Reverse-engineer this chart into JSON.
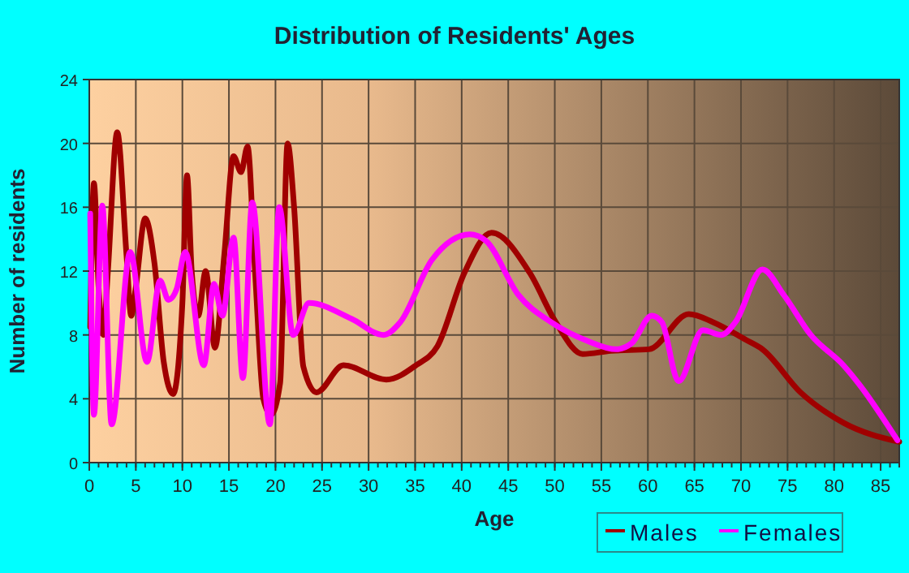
{
  "chart_data": {
    "type": "line",
    "title": "Distribution of Residents' Ages",
    "xlabel": "Age",
    "ylabel": "Number of residents",
    "xlim": [
      0,
      87
    ],
    "ylim": [
      0,
      24
    ],
    "xticks": [
      0,
      5,
      10,
      15,
      20,
      25,
      30,
      35,
      40,
      45,
      50,
      55,
      60,
      65,
      70,
      75,
      80,
      85
    ],
    "yticks": [
      0,
      4,
      8,
      12,
      16,
      20,
      24
    ],
    "grid": true,
    "legend": "bottom",
    "marker": "none",
    "line_style": "solid",
    "series": [
      {
        "name": "Males",
        "color": "#a00000",
        "x": [
          0.1,
          0.5,
          1,
          1.5,
          2,
          3,
          4,
          4.5,
          5,
          6,
          7,
          8,
          9,
          10,
          10.5,
          11,
          11.7,
          12.5,
          13.5,
          14.5,
          15.5,
          16.3,
          17,
          17.8,
          18.7,
          19.5,
          20.5,
          21.3,
          22,
          23,
          24.4,
          27.3,
          31.9,
          35.1,
          37.4,
          40.3,
          43.2,
          47.3,
          50.1,
          53,
          56,
          60.1,
          64.4,
          67,
          70.5,
          72.3,
          76.4,
          81,
          87
        ],
        "values": [
          8.5,
          17.5,
          11,
          8,
          12,
          20.7,
          13,
          9.2,
          11,
          15.3,
          12.5,
          6.3,
          4.3,
          10,
          18,
          12,
          9.2,
          12,
          7.2,
          13,
          19.2,
          18.2,
          19.8,
          12,
          4,
          3,
          5,
          20,
          16,
          6,
          4.4,
          6.1,
          5.2,
          6.1,
          7.3,
          11.9,
          14.4,
          11.9,
          8.8,
          6.8,
          7,
          7.1,
          9.3,
          8.8,
          7.7,
          7.1,
          4.4,
          2.5,
          1.3
        ]
      },
      {
        "name": "Females",
        "color": "#ff00ff",
        "x": [
          0.1,
          0.5,
          1.4,
          2.4,
          4.4,
          6.2,
          7.6,
          8.5,
          9.4,
          10.3,
          12.3,
          13.4,
          14.3,
          15.5,
          16.5,
          17.5,
          19.4,
          20.4,
          21.9,
          23.6,
          28.2,
          31.6,
          33.4,
          36.8,
          40.9,
          42.6,
          46.1,
          49.6,
          53.6,
          56.6,
          58.3,
          60.4,
          61.5,
          63.3,
          65.9,
          67.9,
          69.4,
          72.3,
          74.6,
          77.5,
          81,
          82.7,
          86.8
        ],
        "values": [
          15.6,
          3,
          16.1,
          2.4,
          13.2,
          6.3,
          11.4,
          10.2,
          10.9,
          13.2,
          6.1,
          11.2,
          9.2,
          14.1,
          5.3,
          16.3,
          2.4,
          16,
          8,
          10,
          9,
          8,
          8.8,
          12.7,
          14.3,
          13.9,
          10.5,
          8.8,
          7.6,
          7.1,
          7.5,
          9.2,
          8.8,
          5.1,
          8.3,
          8,
          8.8,
          12.1,
          10.5,
          8,
          6.1,
          4.9,
          1.4
        ]
      }
    ]
  }
}
